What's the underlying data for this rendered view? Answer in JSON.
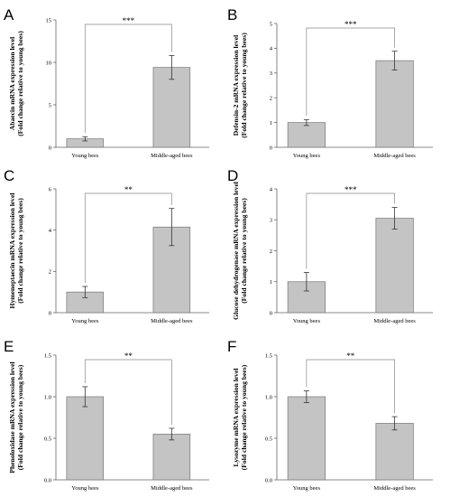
{
  "chart_data": [
    {
      "panel": "A",
      "type": "bar",
      "categories": [
        "Young bees",
        "Middle-aged bees"
      ],
      "values": [
        1.0,
        9.4
      ],
      "errors": [
        0.25,
        1.4
      ],
      "ylabel": [
        "Abaecin mRNA expression level",
        "(Fold change relative to young bees)"
      ],
      "ylim": [
        0,
        15
      ],
      "yticks": [
        "0",
        "5",
        "10",
        "15"
      ],
      "significance": "***"
    },
    {
      "panel": "B",
      "type": "bar",
      "categories": [
        "Young bees",
        "Middle-aged bees"
      ],
      "values": [
        1.0,
        3.5
      ],
      "errors": [
        0.12,
        0.38
      ],
      "ylabel": [
        "Defensin-2 mRNA expression level",
        "(Fold change relative to young bees)"
      ],
      "ylim": [
        0,
        5
      ],
      "yticks": [
        "0",
        "1",
        "2",
        "3",
        "4",
        "5"
      ],
      "significance": "***"
    },
    {
      "panel": "C",
      "type": "bar",
      "categories": [
        "Young bees",
        "Middle-aged bees"
      ],
      "values": [
        1.0,
        4.15
      ],
      "errors": [
        0.27,
        0.9
      ],
      "ylabel": [
        "Hymenoptaecin mRNA expression level",
        "(Fold change relative to young bees)"
      ],
      "ylim": [
        0,
        6
      ],
      "yticks": [
        "0",
        "2",
        "4",
        "6"
      ],
      "significance": "**"
    },
    {
      "panel": "D",
      "type": "bar",
      "categories": [
        "Young bees",
        "Middle-aged bees"
      ],
      "values": [
        1.0,
        3.05
      ],
      "errors": [
        0.3,
        0.35
      ],
      "ylabel": [
        "Glucose dehydrogenase mRNA expression level",
        "(Fold change relative to young bees)"
      ],
      "ylim": [
        0,
        4
      ],
      "yticks": [
        "0",
        "1",
        "2",
        "3",
        "4"
      ],
      "significance": "***"
    },
    {
      "panel": "E",
      "type": "bar",
      "categories": [
        "Young bees",
        "Middle-aged bees"
      ],
      "values": [
        1.0,
        0.55
      ],
      "errors": [
        0.12,
        0.07
      ],
      "ylabel": [
        "Phenoloxidase mRNA expression level",
        "(Fold change relative to young bees)"
      ],
      "ylim": [
        0,
        1.5
      ],
      "yticks": [
        "0.0",
        "0.5",
        "1.0",
        "1.5"
      ],
      "significance": "**"
    },
    {
      "panel": "F",
      "type": "bar",
      "categories": [
        "Young bees",
        "Middle-aged bees"
      ],
      "values": [
        1.0,
        0.68
      ],
      "errors": [
        0.07,
        0.08
      ],
      "ylabel": [
        "Lysozyme mRNA expression level",
        "(Fold change relative to young bees)"
      ],
      "ylim": [
        0,
        1.5
      ],
      "yticks": [
        "0.0",
        "0.5",
        "1.0",
        "1.5"
      ],
      "significance": "**"
    }
  ]
}
